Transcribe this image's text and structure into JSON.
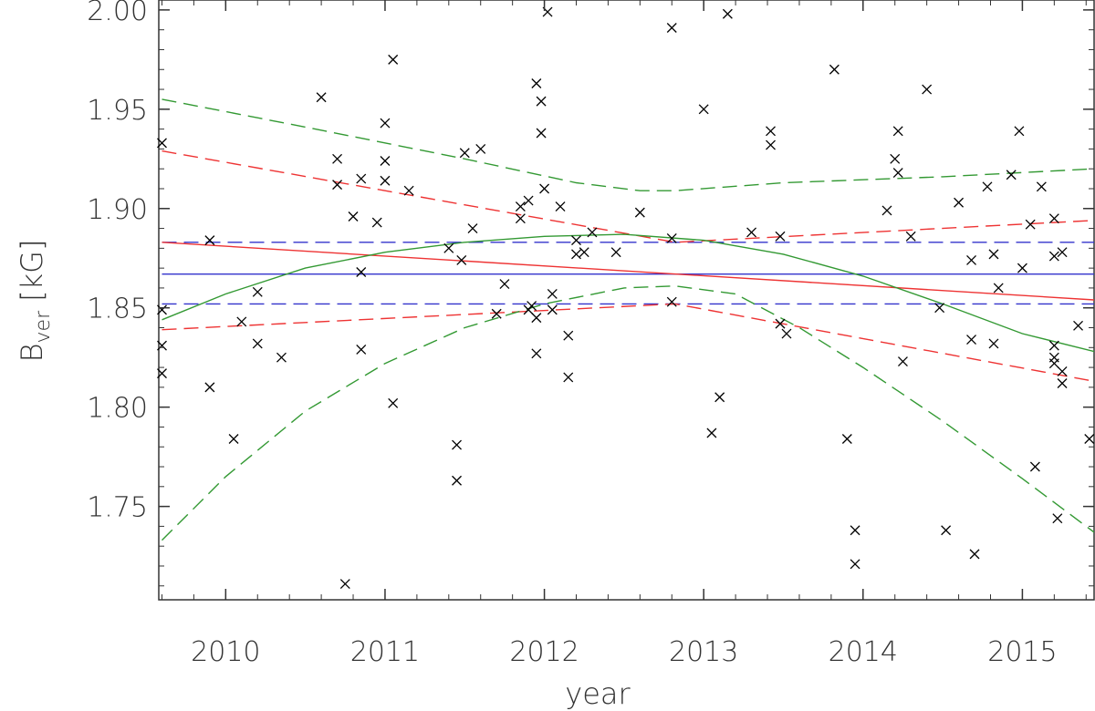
{
  "chart_data": {
    "type": "scatter",
    "xlabel": "year",
    "ylabel": {
      "main": "B",
      "sub": "ver",
      "unit": "[kG]"
    },
    "xlim": [
      2009.58,
      2015.45
    ],
    "ylim": [
      1.703,
      2.005
    ],
    "x_ticks": [
      "2010",
      "2011",
      "2012",
      "2013",
      "2014",
      "2015"
    ],
    "y_ticks": [
      "1.75",
      "1.80",
      "1.85",
      "1.90",
      "1.95",
      "2.00"
    ],
    "grid": false,
    "marker": "x",
    "colors": {
      "points": "#000000",
      "blue": "#3333cc",
      "red": "#ee3333",
      "green": "#339933",
      "axes": "#333333"
    },
    "points": [
      [
        2009.6,
        1.933
      ],
      [
        2009.6,
        1.849
      ],
      [
        2009.6,
        1.831
      ],
      [
        2009.6,
        1.817
      ],
      [
        2009.9,
        1.884
      ],
      [
        2009.9,
        1.81
      ],
      [
        2010.05,
        1.784
      ],
      [
        2010.1,
        1.843
      ],
      [
        2010.2,
        1.858
      ],
      [
        2010.2,
        1.832
      ],
      [
        2010.35,
        1.825
      ],
      [
        2010.6,
        1.956
      ],
      [
        2010.7,
        1.925
      ],
      [
        2010.7,
        1.912
      ],
      [
        2010.75,
        1.711
      ],
      [
        2010.8,
        1.896
      ],
      [
        2010.85,
        1.915
      ],
      [
        2010.85,
        1.868
      ],
      [
        2010.85,
        1.829
      ],
      [
        2010.95,
        1.893
      ],
      [
        2011.0,
        1.943
      ],
      [
        2011.0,
        1.924
      ],
      [
        2011.0,
        1.914
      ],
      [
        2011.05,
        1.802
      ],
      [
        2011.05,
        1.975
      ],
      [
        2011.15,
        1.909
      ],
      [
        2011.4,
        1.88
      ],
      [
        2011.45,
        1.781
      ],
      [
        2011.45,
        1.763
      ],
      [
        2011.48,
        1.874
      ],
      [
        2011.5,
        1.928
      ],
      [
        2011.55,
        1.89
      ],
      [
        2011.6,
        1.93
      ],
      [
        2011.7,
        1.847
      ],
      [
        2011.75,
        1.862
      ],
      [
        2011.85,
        1.901
      ],
      [
        2011.85,
        1.895
      ],
      [
        2011.9,
        1.904
      ],
      [
        2011.9,
        1.849
      ],
      [
        2011.92,
        1.851
      ],
      [
        2011.95,
        1.963
      ],
      [
        2011.95,
        1.845
      ],
      [
        2011.95,
        1.827
      ],
      [
        2011.98,
        1.954
      ],
      [
        2011.98,
        1.938
      ],
      [
        2012.0,
        1.91
      ],
      [
        2012.02,
        1.999
      ],
      [
        2012.05,
        1.857
      ],
      [
        2012.05,
        1.849
      ],
      [
        2012.1,
        1.901
      ],
      [
        2012.15,
        1.836
      ],
      [
        2012.15,
        1.815
      ],
      [
        2012.2,
        1.884
      ],
      [
        2012.2,
        1.877
      ],
      [
        2012.25,
        1.878
      ],
      [
        2012.3,
        1.888
      ],
      [
        2012.45,
        1.878
      ],
      [
        2012.6,
        1.898
      ],
      [
        2012.8,
        1.885
      ],
      [
        2012.8,
        1.853
      ],
      [
        2012.8,
        1.991
      ],
      [
        2013.0,
        1.95
      ],
      [
        2013.05,
        1.787
      ],
      [
        2013.1,
        1.805
      ],
      [
        2013.15,
        1.998
      ],
      [
        2013.3,
        1.888
      ],
      [
        2013.42,
        1.939
      ],
      [
        2013.42,
        1.932
      ],
      [
        2013.48,
        1.886
      ],
      [
        2013.48,
        1.842
      ],
      [
        2013.52,
        1.837
      ],
      [
        2013.82,
        1.97
      ],
      [
        2013.9,
        1.784
      ],
      [
        2013.95,
        1.738
      ],
      [
        2013.95,
        1.721
      ],
      [
        2014.15,
        1.899
      ],
      [
        2014.2,
        1.925
      ],
      [
        2014.22,
        1.918
      ],
      [
        2014.22,
        1.939
      ],
      [
        2014.25,
        1.823
      ],
      [
        2014.3,
        1.886
      ],
      [
        2014.4,
        1.96
      ],
      [
        2014.48,
        1.85
      ],
      [
        2014.52,
        1.738
      ],
      [
        2014.6,
        1.903
      ],
      [
        2014.68,
        1.874
      ],
      [
        2014.68,
        1.834
      ],
      [
        2014.7,
        1.726
      ],
      [
        2014.78,
        1.911
      ],
      [
        2014.82,
        1.877
      ],
      [
        2014.82,
        1.832
      ],
      [
        2014.85,
        1.86
      ],
      [
        2014.93,
        1.917
      ],
      [
        2014.98,
        1.939
      ],
      [
        2015.0,
        1.87
      ],
      [
        2015.05,
        1.892
      ],
      [
        2015.08,
        1.77
      ],
      [
        2015.12,
        1.911
      ],
      [
        2015.2,
        1.895
      ],
      [
        2015.2,
        1.876
      ],
      [
        2015.2,
        1.831
      ],
      [
        2015.2,
        1.825
      ],
      [
        2015.2,
        1.822
      ],
      [
        2015.22,
        1.744
      ],
      [
        2015.25,
        1.878
      ],
      [
        2015.25,
        1.818
      ],
      [
        2015.25,
        1.812
      ],
      [
        2015.35,
        1.841
      ],
      [
        2015.42,
        1.784
      ]
    ],
    "lines": [
      {
        "color": "blue",
        "style": "solid",
        "points": [
          [
            2009.6,
            1.867
          ],
          [
            2015.45,
            1.867
          ]
        ]
      },
      {
        "color": "blue",
        "style": "dashed",
        "points": [
          [
            2009.6,
            1.883
          ],
          [
            2015.45,
            1.883
          ]
        ]
      },
      {
        "color": "blue",
        "style": "dashed",
        "points": [
          [
            2009.6,
            1.852
          ],
          [
            2015.45,
            1.852
          ]
        ]
      },
      {
        "color": "red",
        "style": "solid",
        "points": [
          [
            2009.6,
            1.883
          ],
          [
            2015.45,
            1.854
          ]
        ]
      },
      {
        "color": "red",
        "style": "dashed",
        "points": [
          [
            2009.6,
            1.929
          ],
          [
            2012.82,
            1.883
          ],
          [
            2015.45,
            1.894
          ]
        ]
      },
      {
        "color": "red",
        "style": "dashed",
        "points": [
          [
            2009.6,
            1.839
          ],
          [
            2012.82,
            1.852
          ],
          [
            2015.45,
            1.813
          ]
        ]
      },
      {
        "color": "green",
        "style": "solid",
        "points": [
          [
            2009.6,
            1.844
          ],
          [
            2010.0,
            1.857
          ],
          [
            2010.5,
            1.87
          ],
          [
            2011.0,
            1.878
          ],
          [
            2011.5,
            1.883
          ],
          [
            2012.0,
            1.886
          ],
          [
            2012.5,
            1.887
          ],
          [
            2013.0,
            1.884
          ],
          [
            2013.5,
            1.877
          ],
          [
            2014.0,
            1.866
          ],
          [
            2014.5,
            1.852
          ],
          [
            2015.0,
            1.837
          ],
          [
            2015.45,
            1.828
          ]
        ]
      },
      {
        "color": "green",
        "style": "dashed",
        "points": [
          [
            2009.6,
            1.955
          ],
          [
            2010.5,
            1.941
          ],
          [
            2011.5,
            1.925
          ],
          [
            2012.2,
            1.913
          ],
          [
            2012.6,
            1.909
          ],
          [
            2012.82,
            1.909
          ],
          [
            2013.5,
            1.913
          ],
          [
            2014.5,
            1.916
          ],
          [
            2015.45,
            1.92
          ]
        ]
      },
      {
        "color": "green",
        "style": "dashed",
        "points": [
          [
            2009.6,
            1.733
          ],
          [
            2010.0,
            1.765
          ],
          [
            2010.5,
            1.798
          ],
          [
            2011.0,
            1.822
          ],
          [
            2011.5,
            1.84
          ],
          [
            2012.0,
            1.852
          ],
          [
            2012.5,
            1.86
          ],
          [
            2012.82,
            1.861
          ],
          [
            2013.2,
            1.857
          ],
          [
            2013.6,
            1.84
          ],
          [
            2014.0,
            1.82
          ],
          [
            2014.5,
            1.793
          ],
          [
            2015.0,
            1.764
          ],
          [
            2015.45,
            1.737
          ]
        ]
      }
    ]
  }
}
